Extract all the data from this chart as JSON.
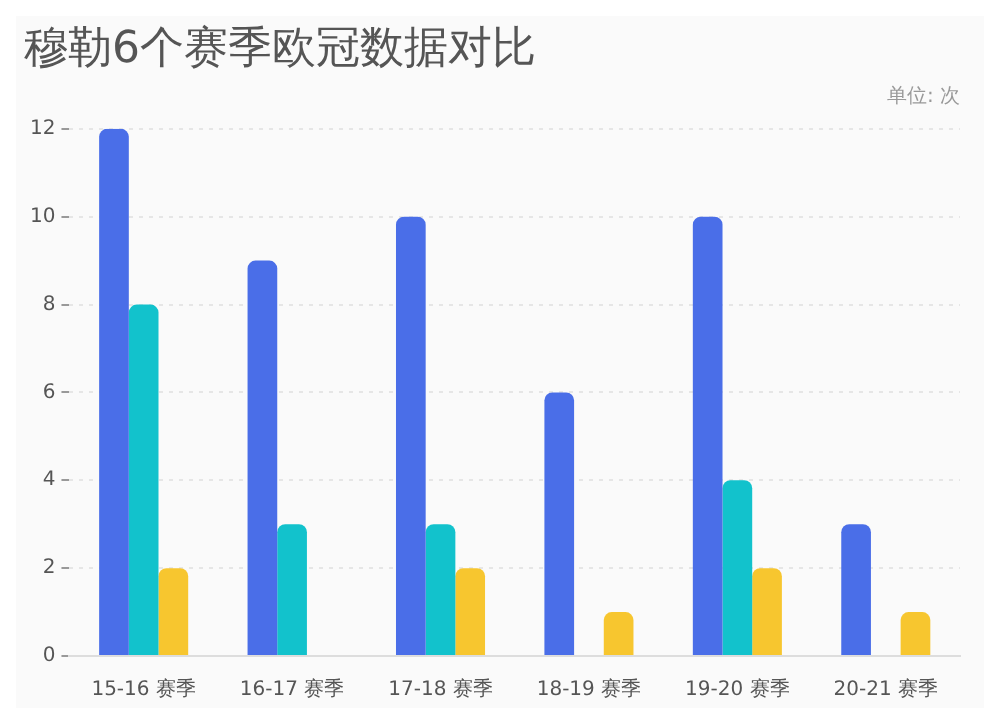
{
  "chart_data": {
    "type": "bar",
    "title": "穆勒6个赛季欧冠数据对比",
    "subtitle": "单位: 次",
    "categories": [
      "15-16 赛季",
      "16-17 赛季",
      "17-18 赛季",
      "18-19 赛季",
      "19-20 赛季",
      "20-21 赛季"
    ],
    "series": [
      {
        "color": "#4a6ee8",
        "values": [
          12,
          9,
          10,
          6,
          10,
          3
        ]
      },
      {
        "color": "#12c2cc",
        "values": [
          8,
          3,
          3,
          0,
          4,
          0
        ]
      },
      {
        "color": "#f7c62f",
        "values": [
          2,
          0,
          2,
          1,
          2,
          1
        ]
      }
    ],
    "ylim": [
      0,
      12
    ],
    "yticks": [
      0,
      2,
      4,
      6,
      8,
      10,
      12
    ],
    "grid": "y",
    "legend": false
  }
}
